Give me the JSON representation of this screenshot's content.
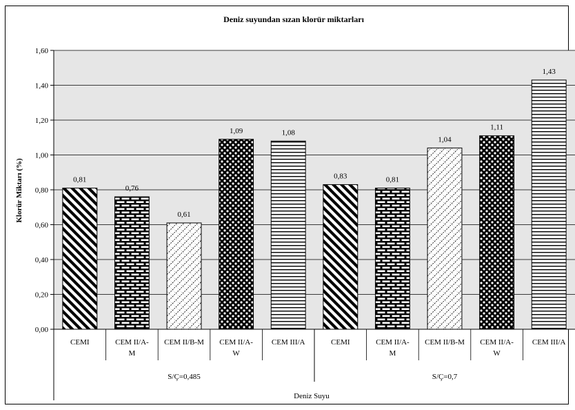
{
  "chart_data": {
    "type": "bar",
    "title": "Deniz suyundan sızan klorür miktarları",
    "ylabel": "Klorür Miktarı (%)",
    "xlabel": "Deniz Suyu",
    "ylim": [
      0,
      1.6
    ],
    "yticks": [
      "0,00",
      "0,20",
      "0,40",
      "0,60",
      "0,80",
      "1,00",
      "1,20",
      "1,40",
      "1,60"
    ],
    "grid": true,
    "groups": [
      {
        "label": "S/Ç=0,485",
        "bars": [
          {
            "category": [
              "CEMI"
            ],
            "value": 0.81,
            "label": "0,81",
            "pattern": "diagonal"
          },
          {
            "category": [
              "CEM II/A-",
              "M"
            ],
            "value": 0.76,
            "label": "0,76",
            "pattern": "brick"
          },
          {
            "category": [
              "CEM II/B-M"
            ],
            "value": 0.61,
            "label": "0,61",
            "pattern": "lattice"
          },
          {
            "category": [
              "CEM II/A-",
              "W"
            ],
            "value": 1.09,
            "label": "1,09",
            "pattern": "checker"
          },
          {
            "category": [
              "CEM III/A"
            ],
            "value": 1.08,
            "label": "1,08",
            "pattern": "horizontal"
          }
        ]
      },
      {
        "label": "S/Ç=0,7",
        "bars": [
          {
            "category": [
              "CEMI"
            ],
            "value": 0.83,
            "label": "0,83",
            "pattern": "diagonal"
          },
          {
            "category": [
              "CEM II/A-",
              "M"
            ],
            "value": 0.81,
            "label": "0,81",
            "pattern": "brick"
          },
          {
            "category": [
              "CEM II/B-M"
            ],
            "value": 1.04,
            "label": "1,04",
            "pattern": "lattice"
          },
          {
            "category": [
              "CEM II/A-",
              "W"
            ],
            "value": 1.11,
            "label": "1,11",
            "pattern": "checker"
          },
          {
            "category": [
              "CEM III/A"
            ],
            "value": 1.43,
            "label": "1,43",
            "pattern": "horizontal"
          }
        ]
      }
    ],
    "colors": {
      "plot_background": "#e6e6e6",
      "bar_fill": "#ffffff",
      "ink": "#000000"
    }
  }
}
